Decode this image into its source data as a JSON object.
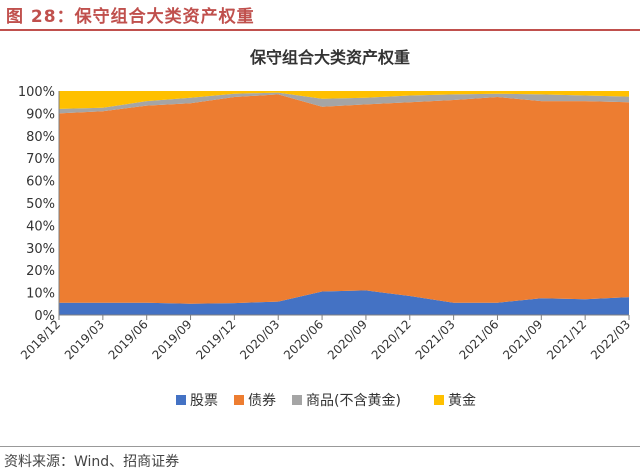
{
  "figure": {
    "label": "图 28：保守组合大类资产权重",
    "source": "资料来源：Wind、招商证券"
  },
  "colors": {
    "accent": "#c0504d",
    "stock": "#4472c4",
    "bond": "#ed7d31",
    "commodity": "#a5a5a5",
    "gold": "#ffc000"
  },
  "chart_data": {
    "type": "area",
    "stacked": true,
    "title": "保守组合大类资产权重",
    "xlabel": "",
    "ylabel": "",
    "ylim": [
      0,
      100
    ],
    "y_unit": "%",
    "y_ticks": [
      "0%",
      "10%",
      "20%",
      "30%",
      "40%",
      "50%",
      "60%",
      "70%",
      "80%",
      "90%",
      "100%"
    ],
    "x_ticks": [
      "2018/12",
      "2019/03",
      "2019/06",
      "2019/09",
      "2019/12",
      "2020/03",
      "2020/06",
      "2020/09",
      "2020/12",
      "2021/03",
      "2021/06",
      "2021/09",
      "2021/12",
      "2022/03"
    ],
    "x": [
      "2018/12",
      "2019/03",
      "2019/06",
      "2019/09",
      "2019/12",
      "2020/03",
      "2020/06",
      "2020/09",
      "2020/12",
      "2021/03",
      "2021/06",
      "2021/09",
      "2021/12",
      "2022/03"
    ],
    "series": [
      {
        "name": "股票",
        "color": "#4472c4",
        "values": [
          5.5,
          5.5,
          5.5,
          5.0,
          5.3,
          6.0,
          10.5,
          11.0,
          8.5,
          5.5,
          5.5,
          7.5,
          7.0,
          8.0
        ]
      },
      {
        "name": "债券",
        "color": "#ed7d31",
        "values": [
          84.5,
          85.5,
          88.0,
          89.5,
          92.0,
          92.5,
          82.5,
          83.0,
          86.5,
          90.5,
          91.8,
          88.0,
          88.5,
          87.0
        ]
      },
      {
        "name": "商品(不含黄金)",
        "color": "#a5a5a5",
        "values": [
          2.0,
          1.5,
          2.0,
          2.5,
          1.5,
          0.8,
          3.5,
          3.0,
          3.0,
          2.5,
          1.5,
          3.0,
          2.5,
          2.5
        ]
      },
      {
        "name": "黄金",
        "color": "#ffc000",
        "values": [
          8.0,
          7.5,
          4.5,
          3.0,
          1.2,
          0.7,
          3.5,
          3.0,
          2.0,
          1.5,
          1.2,
          1.5,
          2.0,
          2.5
        ]
      }
    ],
    "grid": false,
    "legend": "bottom"
  }
}
